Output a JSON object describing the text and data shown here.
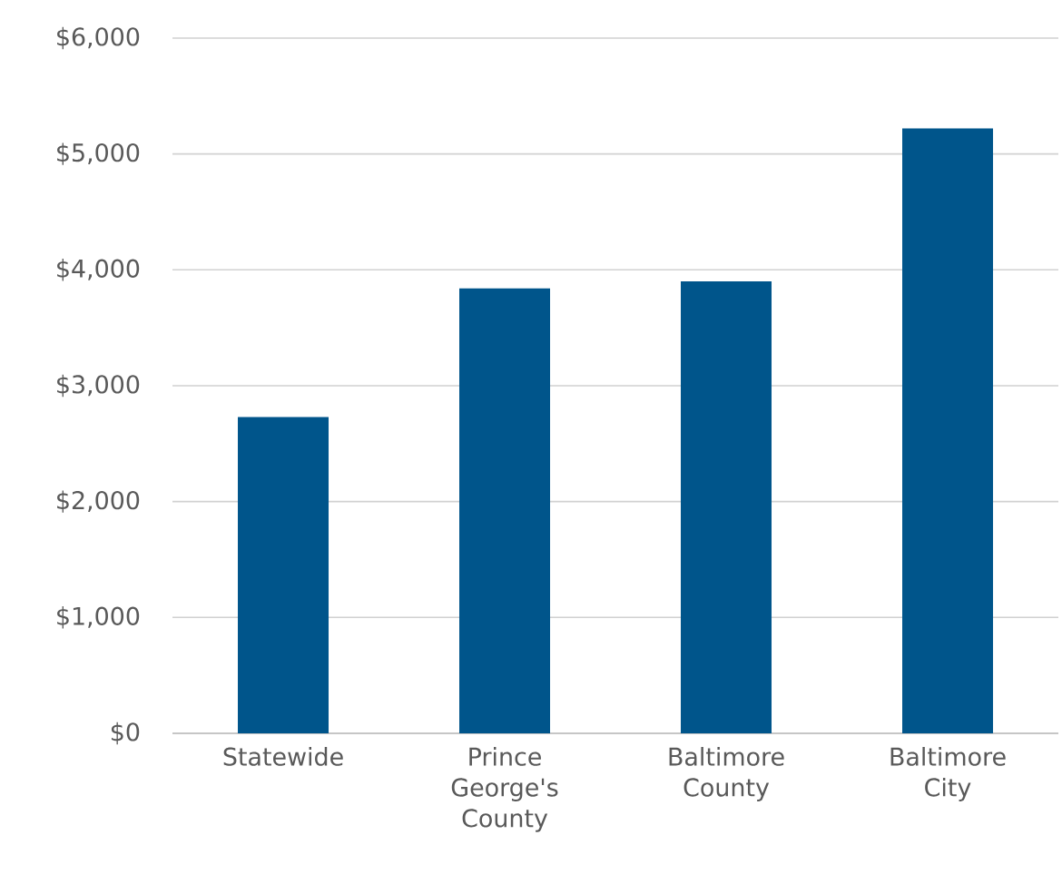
{
  "chart_data": {
    "type": "bar",
    "categories": [
      "Statewide",
      "Prince George's County",
      "Baltimore County",
      "Baltimore City"
    ],
    "values": [
      2730,
      3840,
      3900,
      5220
    ],
    "color": "#00558b",
    "ylim": [
      0,
      6000
    ],
    "yticks": [
      {
        "value": 0,
        "label": "$0"
      },
      {
        "value": 1000,
        "label": "$1,000"
      },
      {
        "value": 2000,
        "label": "$2,000"
      },
      {
        "value": 3000,
        "label": "$3,000"
      },
      {
        "value": 4000,
        "label": "$4,000"
      },
      {
        "value": 5000,
        "label": "$5,000"
      },
      {
        "value": 6000,
        "label": "$6,000"
      }
    ],
    "grid": "y"
  }
}
